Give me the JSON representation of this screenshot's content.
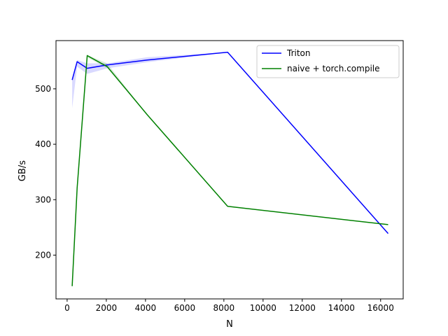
{
  "chart_data": {
    "type": "line",
    "title": "",
    "xlabel": "N",
    "ylabel": "GB/s",
    "xlim": [
      -568,
      17152
    ],
    "ylim": [
      121,
      587
    ],
    "xticks": [
      0,
      2000,
      4000,
      6000,
      8000,
      10000,
      12000,
      14000,
      16000
    ],
    "yticks": [
      200,
      300,
      400,
      500
    ],
    "grid": false,
    "legend_position": "top-right",
    "series": [
      {
        "name": "Triton",
        "color": "#0000ff",
        "x": [
          256,
          512,
          1024,
          2048,
          4096,
          8192,
          16384
        ],
        "y": [
          516,
          549,
          537,
          543,
          552,
          566,
          239
        ],
        "band_lower": [
          465,
          540,
          527,
          537,
          548,
          566,
          239
        ],
        "band_upper": [
          520,
          552,
          546,
          546,
          557,
          566,
          239
        ]
      },
      {
        "name": "naive + torch.compile",
        "color": "#008000",
        "x": [
          256,
          512,
          1024,
          2048,
          4096,
          8192,
          16384
        ],
        "y": [
          144,
          321,
          560,
          540,
          453,
          288,
          255
        ],
        "band_lower": [
          144,
          321,
          557,
          537,
          453,
          288,
          255
        ],
        "band_upper": [
          144,
          321,
          561,
          546,
          453,
          288,
          255
        ]
      }
    ]
  }
}
